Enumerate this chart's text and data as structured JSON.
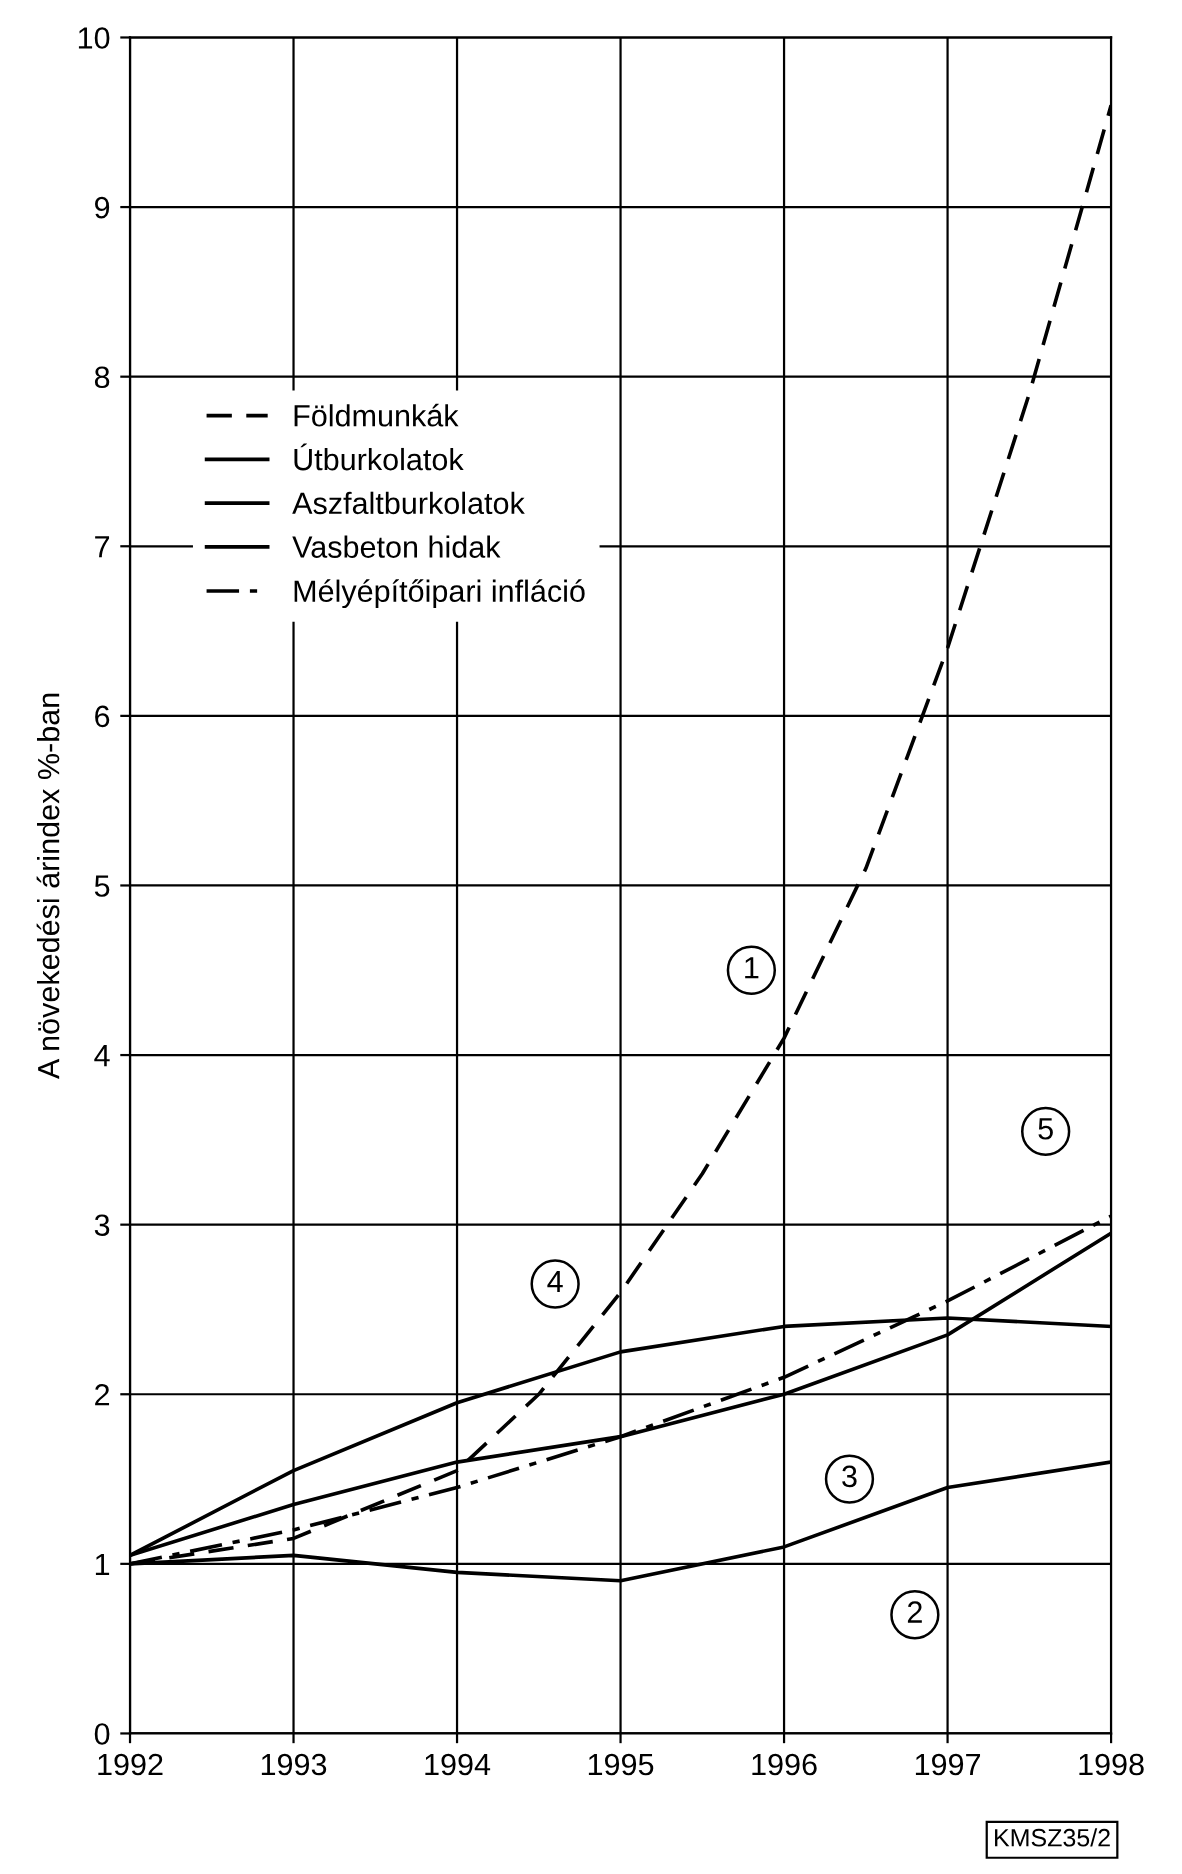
{
  "chart_data": {
    "type": "line",
    "ylabel": "A növekedési árindex %-ban",
    "x": [
      1992,
      1993,
      1994,
      1995,
      1996,
      1997,
      1998
    ],
    "series": [
      {
        "name": "Földmunkák",
        "color": "#000000",
        "line_style": "dashed",
        "x": [
          1992,
          1993,
          1994,
          1994.5,
          1995,
          1995.5,
          1996,
          1996.5,
          1997,
          1997.5,
          1998
        ],
        "values": [
          1.0,
          1.15,
          1.55,
          2.0,
          2.6,
          3.3,
          4.1,
          5.1,
          6.4,
          7.9,
          9.6
        ]
      },
      {
        "name": "Útburkolatok",
        "color": "#000000",
        "line_style": "solid",
        "values": [
          1.0,
          1.05,
          0.95,
          0.9,
          1.1,
          1.45,
          1.6
        ]
      },
      {
        "name": "Aszfaltburkolatok",
        "color": "#000000",
        "line_style": "solid",
        "values": [
          1.05,
          1.35,
          1.6,
          1.75,
          2.0,
          2.35,
          2.95
        ]
      },
      {
        "name": "Vasbeton hidak",
        "color": "#000000",
        "line_style": "solid",
        "values": [
          1.05,
          1.55,
          1.95,
          2.25,
          2.4,
          2.45,
          2.4
        ]
      },
      {
        "name": "Mélyépítőipari infláció",
        "color": "#000000",
        "line_style": "dashdot",
        "values": [
          1.0,
          1.2,
          1.45,
          1.75,
          2.1,
          2.55,
          3.05
        ]
      }
    ],
    "xlim": [
      1992,
      1998
    ],
    "xticks": [
      1992,
      1993,
      1994,
      1995,
      1996,
      1997,
      1998
    ],
    "ylim": [
      0,
      10
    ],
    "yticks": [
      0,
      1,
      2,
      3,
      4,
      5,
      6,
      7,
      8,
      9,
      10
    ],
    "grid": true,
    "legend": "top left",
    "marker": "none",
    "annotations": [
      {
        "text": "1",
        "x": 1995.8,
        "y": 4.5
      },
      {
        "text": "2",
        "x": 1996.8,
        "y": 0.7
      },
      {
        "text": "3",
        "x": 1996.4,
        "y": 1.5
      },
      {
        "text": "4",
        "x": 1994.6,
        "y": 2.65
      },
      {
        "text": "5",
        "x": 1997.6,
        "y": 3.55
      },
      "KMSZ35/2"
    ]
  }
}
